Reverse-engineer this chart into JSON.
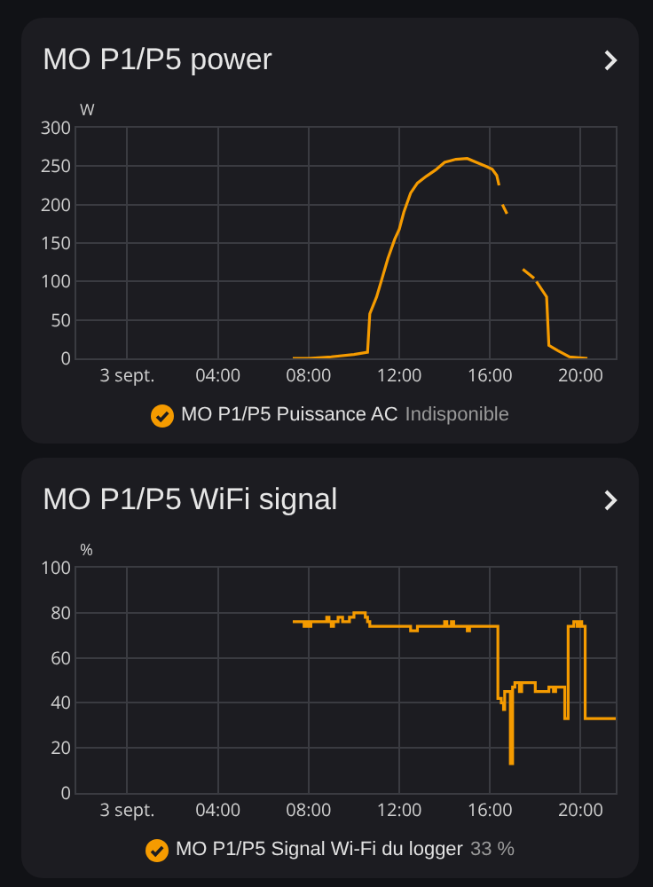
{
  "chart_data": [
    {
      "type": "line",
      "title": "MO P1/P5 power",
      "ylabel": "W",
      "annotations": [
        "Indisponible"
      ],
      "xlim": [
        -2.25,
        21.55
      ],
      "xticks": [
        {
          "value": 0,
          "label": "3 sept."
        },
        {
          "value": 4,
          "label": "04:00"
        },
        {
          "value": 8,
          "label": "08:00"
        },
        {
          "value": 12,
          "label": "12:00"
        },
        {
          "value": 16,
          "label": "16:00"
        },
        {
          "value": 20,
          "label": "20:00"
        }
      ],
      "ylim": [
        0,
        300
      ],
      "yticks": [
        0,
        50,
        100,
        150,
        200,
        250,
        300
      ],
      "grid": true,
      "legend": "bottom",
      "series": [
        {
          "name": "MO P1/P5 Puissance AC",
          "color": "#f59b00",
          "x": [
            7.3,
            8.0,
            9.0,
            10.0,
            10.6,
            10.7,
            11.0,
            11.2,
            11.5,
            11.8,
            12.0,
            12.2,
            12.5,
            12.8,
            13.2,
            13.6,
            14.0,
            14.5,
            15.0,
            15.4,
            15.8,
            16.1,
            16.3,
            16.4,
            16.45,
            16.55,
            16.75,
            17.0,
            17.45,
            17.95,
            18.0,
            18.05,
            18.5,
            18.6,
            19.0,
            19.5,
            20.3
          ],
          "values": [
            0,
            0,
            2,
            5,
            8,
            58,
            80,
            100,
            130,
            155,
            168,
            190,
            215,
            228,
            237,
            245,
            255,
            259,
            260,
            255,
            250,
            246,
            238,
            225,
            null,
            200,
            188,
            null,
            116,
            104,
            null,
            100,
            80,
            17,
            10,
            2,
            0
          ]
        }
      ]
    },
    {
      "type": "step",
      "title": "MO P1/P5 WiFi signal",
      "ylabel": "%",
      "annotations": [
        "33 %"
      ],
      "xlim": [
        -2.25,
        21.55
      ],
      "xticks": [
        {
          "value": 0,
          "label": "3 sept."
        },
        {
          "value": 4,
          "label": "04:00"
        },
        {
          "value": 8,
          "label": "08:00"
        },
        {
          "value": 12,
          "label": "12:00"
        },
        {
          "value": 16,
          "label": "16:00"
        },
        {
          "value": 20,
          "label": "20:00"
        }
      ],
      "ylim": [
        0,
        100
      ],
      "yticks": [
        0,
        20,
        40,
        60,
        80,
        100
      ],
      "grid": true,
      "legend": "bottom",
      "series": [
        {
          "name": "MO P1/P5 Signal Wi-Fi du logger",
          "color": "#f59b00",
          "x": [
            7.3,
            7.8,
            7.9,
            8.0,
            8.1,
            8.8,
            8.9,
            9.0,
            9.1,
            9.3,
            9.5,
            9.8,
            10.0,
            10.5,
            10.6,
            10.7,
            12.5,
            12.8,
            14.0,
            14.1,
            14.3,
            14.4,
            15.0,
            15.1,
            16.35,
            16.5,
            16.6,
            16.65,
            16.9,
            17.0,
            17.1,
            17.3,
            17.4,
            18.0,
            18.6,
            18.8,
            18.9,
            19.3,
            19.45,
            19.7,
            19.85,
            19.95,
            20.05,
            20.2,
            21.55
          ],
          "values": [
            76,
            74,
            76,
            74,
            76,
            78,
            76,
            74,
            76,
            78,
            76,
            78,
            80,
            78,
            76,
            74,
            72,
            74,
            76,
            74,
            76,
            74,
            72,
            74,
            42,
            40,
            37,
            45,
            13,
            47,
            49,
            45,
            49,
            45,
            47,
            45,
            47,
            33,
            74,
            76,
            74,
            76,
            74,
            33,
            33
          ]
        }
      ]
    }
  ]
}
